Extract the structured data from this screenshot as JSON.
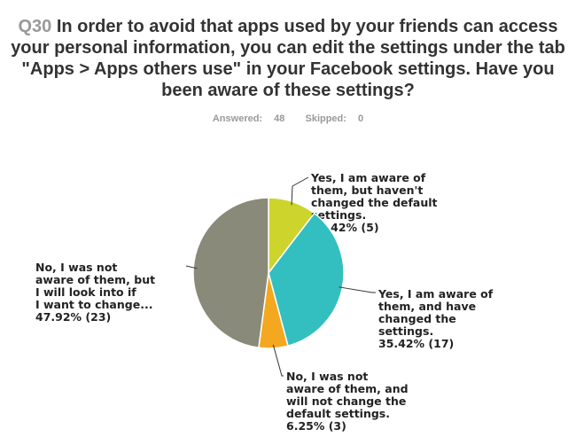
{
  "question": {
    "number": "Q30",
    "text": "In order to avoid that apps used by your friends can access your personal information, you can edit the settings under the tab \"Apps > Apps others use\" in your Facebook settings. Have you been aware of these settings?"
  },
  "stats": {
    "answered_label": "Answered:",
    "answered": "48",
    "skipped_label": "Skipped:",
    "skipped": "0"
  },
  "chart_data": {
    "type": "pie",
    "slices": [
      {
        "label_lines": [
          "Yes, I am aware of",
          "them, but haven't",
          "changed the default",
          "settings.",
          "10.42% (5)"
        ],
        "percent": 10.42,
        "count": 5,
        "color": "#cdd42b"
      },
      {
        "label_lines": [
          "Yes, I am aware of",
          "them, and have",
          "changed the",
          "settings.",
          "35.42% (17)"
        ],
        "percent": 35.42,
        "count": 17,
        "color": "#33bfbf"
      },
      {
        "label_lines": [
          "No, I was not",
          "aware of them, and",
          "will not change the",
          "default settings.",
          "6.25% (3)"
        ],
        "percent": 6.25,
        "count": 3,
        "color": "#f3a81f"
      },
      {
        "label_lines": [
          "No, I was not",
          "aware of them, but",
          "I will look into if",
          "I want to change...",
          "47.92% (23)"
        ],
        "percent": 47.92,
        "count": 23,
        "color": "#8a8a7a"
      }
    ]
  }
}
